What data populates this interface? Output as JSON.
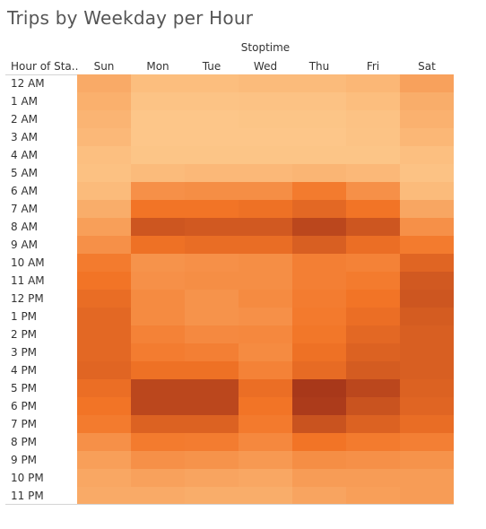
{
  "chart_data": {
    "type": "heatmap",
    "title": "Trips by Weekday per Hour",
    "column_group_title": "Stoptime",
    "row_header_title": "Hour of Sta..",
    "columns": [
      "Sun",
      "Mon",
      "Tue",
      "Wed",
      "Thu",
      "Fri",
      "Sat"
    ],
    "rows": [
      "12 AM",
      "1 AM",
      "2 AM",
      "3 AM",
      "4 AM",
      "5 AM",
      "6 AM",
      "7 AM",
      "8 AM",
      "9 AM",
      "10 AM",
      "11 AM",
      "12 PM",
      "1 PM",
      "2 PM",
      "3 PM",
      "4 PM",
      "5 PM",
      "6 PM",
      "7 PM",
      "8 PM",
      "9 PM",
      "10 PM",
      "11 PM"
    ],
    "values": [
      [
        0.22,
        0.08,
        0.08,
        0.1,
        0.1,
        0.13,
        0.28
      ],
      [
        0.18,
        0.04,
        0.04,
        0.05,
        0.05,
        0.08,
        0.2
      ],
      [
        0.15,
        0.02,
        0.02,
        0.03,
        0.03,
        0.05,
        0.17
      ],
      [
        0.12,
        0.02,
        0.02,
        0.02,
        0.02,
        0.04,
        0.13
      ],
      [
        0.07,
        0.03,
        0.03,
        0.03,
        0.03,
        0.03,
        0.07
      ],
      [
        0.06,
        0.1,
        0.12,
        0.12,
        0.14,
        0.12,
        0.05
      ],
      [
        0.1,
        0.4,
        0.42,
        0.42,
        0.55,
        0.4,
        0.1
      ],
      [
        0.2,
        0.6,
        0.6,
        0.62,
        0.68,
        0.6,
        0.25
      ],
      [
        0.3,
        0.8,
        0.78,
        0.78,
        0.9,
        0.8,
        0.4
      ],
      [
        0.4,
        0.62,
        0.65,
        0.65,
        0.74,
        0.64,
        0.55
      ],
      [
        0.55,
        0.38,
        0.4,
        0.42,
        0.52,
        0.5,
        0.7
      ],
      [
        0.6,
        0.4,
        0.42,
        0.42,
        0.52,
        0.55,
        0.78
      ],
      [
        0.65,
        0.44,
        0.38,
        0.44,
        0.54,
        0.6,
        0.8
      ],
      [
        0.68,
        0.44,
        0.38,
        0.4,
        0.56,
        0.64,
        0.76
      ],
      [
        0.68,
        0.5,
        0.45,
        0.46,
        0.58,
        0.68,
        0.74
      ],
      [
        0.68,
        0.54,
        0.52,
        0.44,
        0.62,
        0.72,
        0.74
      ],
      [
        0.7,
        0.62,
        0.62,
        0.5,
        0.66,
        0.76,
        0.74
      ],
      [
        0.64,
        0.9,
        0.9,
        0.64,
        1.0,
        0.9,
        0.72
      ],
      [
        0.6,
        0.9,
        0.9,
        0.6,
        0.98,
        0.82,
        0.7
      ],
      [
        0.55,
        0.72,
        0.72,
        0.56,
        0.82,
        0.72,
        0.65
      ],
      [
        0.4,
        0.55,
        0.54,
        0.46,
        0.6,
        0.55,
        0.52
      ],
      [
        0.3,
        0.4,
        0.38,
        0.34,
        0.42,
        0.4,
        0.38
      ],
      [
        0.24,
        0.28,
        0.26,
        0.24,
        0.32,
        0.32,
        0.32
      ],
      [
        0.22,
        0.22,
        0.2,
        0.2,
        0.26,
        0.3,
        0.32
      ]
    ],
    "value_scale": "relative intensity 0-1 (no legend shown)",
    "color_low": "#fdc98c",
    "color_high": "#a8381a",
    "grid": false
  }
}
